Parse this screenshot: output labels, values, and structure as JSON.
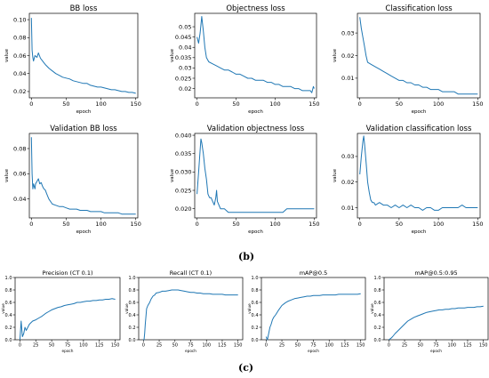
{
  "figure": {
    "panel_labels": [
      "(b)",
      "(c)"
    ],
    "line_color": "#1f77b4"
  },
  "chart_data": [
    {
      "type": "line",
      "title": "BB loss",
      "xlabel": "epoch",
      "ylabel": "value",
      "xlim": [
        -3,
        153
      ],
      "ylim": [
        0.013,
        0.107
      ],
      "xticks": [
        0,
        50,
        100,
        150
      ],
      "yticks": [
        0.02,
        0.04,
        0.06,
        0.08,
        0.1
      ],
      "ytick_labels": [
        "0.02",
        "0.04",
        "0.06",
        "0.08",
        "0.10"
      ],
      "grid": false,
      "series": [
        {
          "x": [
            0,
            1,
            2,
            3,
            5,
            8,
            10,
            13,
            15,
            18,
            20,
            25,
            30,
            35,
            40,
            45,
            50,
            55,
            60,
            65,
            70,
            75,
            80,
            85,
            90,
            95,
            100,
            105,
            110,
            115,
            120,
            125,
            130,
            135,
            140,
            145,
            150
          ],
          "y": [
            0.102,
            0.066,
            0.058,
            0.054,
            0.06,
            0.058,
            0.063,
            0.057,
            0.055,
            0.052,
            0.05,
            0.046,
            0.043,
            0.04,
            0.038,
            0.036,
            0.035,
            0.034,
            0.032,
            0.031,
            0.03,
            0.029,
            0.029,
            0.027,
            0.026,
            0.025,
            0.025,
            0.024,
            0.023,
            0.022,
            0.022,
            0.021,
            0.02,
            0.02,
            0.019,
            0.019,
            0.018
          ]
        }
      ]
    },
    {
      "type": "line",
      "title": "Objectness loss",
      "xlabel": "epoch",
      "ylabel": "value",
      "xlim": [
        -3,
        153
      ],
      "ylim": [
        0.0155,
        0.0565
      ],
      "xticks": [
        0,
        50,
        100,
        150
      ],
      "yticks": [
        0.02,
        0.025,
        0.03,
        0.035,
        0.04,
        0.045,
        0.05
      ],
      "ytick_labels": [
        "0.02",
        "0.025",
        "0.03",
        "0.035",
        "0.04",
        "0.045",
        "0.05"
      ],
      "grid": false,
      "series": [
        {
          "x": [
            0,
            2,
            4,
            6,
            8,
            10,
            12,
            15,
            20,
            25,
            30,
            35,
            40,
            45,
            50,
            55,
            60,
            65,
            70,
            75,
            80,
            85,
            90,
            95,
            100,
            105,
            110,
            115,
            120,
            125,
            130,
            135,
            140,
            145,
            147,
            149,
            150
          ],
          "y": [
            0.045,
            0.042,
            0.047,
            0.055,
            0.048,
            0.04,
            0.035,
            0.033,
            0.032,
            0.031,
            0.03,
            0.029,
            0.029,
            0.028,
            0.027,
            0.027,
            0.026,
            0.025,
            0.025,
            0.024,
            0.024,
            0.024,
            0.023,
            0.023,
            0.022,
            0.022,
            0.021,
            0.021,
            0.021,
            0.02,
            0.02,
            0.019,
            0.019,
            0.019,
            0.018,
            0.021,
            0.02
          ]
        }
      ]
    },
    {
      "type": "line",
      "title": "Classification loss",
      "xlabel": "epoch",
      "ylabel": "value",
      "xlim": [
        -3,
        153
      ],
      "ylim": [
        0.0013,
        0.0387
      ],
      "xticks": [
        0,
        50,
        100,
        150
      ],
      "yticks": [
        0.01,
        0.02,
        0.03
      ],
      "ytick_labels": [
        "0.01",
        "0.02",
        "0.03"
      ],
      "grid": false,
      "series": [
        {
          "x": [
            0,
            2,
            4,
            6,
            8,
            10,
            15,
            20,
            25,
            30,
            35,
            40,
            45,
            50,
            55,
            60,
            65,
            70,
            75,
            80,
            85,
            90,
            95,
            100,
            105,
            110,
            115,
            120,
            125,
            130,
            135,
            140,
            145,
            150
          ],
          "y": [
            0.037,
            0.032,
            0.028,
            0.024,
            0.02,
            0.017,
            0.016,
            0.015,
            0.014,
            0.013,
            0.012,
            0.011,
            0.01,
            0.009,
            0.009,
            0.008,
            0.008,
            0.007,
            0.007,
            0.006,
            0.006,
            0.005,
            0.005,
            0.005,
            0.004,
            0.004,
            0.004,
            0.004,
            0.003,
            0.003,
            0.003,
            0.003,
            0.003,
            0.003
          ]
        }
      ]
    },
    {
      "type": "line",
      "title": "Validation BB loss",
      "xlabel": "epoch",
      "ylabel": "value",
      "xlim": [
        -3,
        153
      ],
      "ylim": [
        0.025,
        0.092
      ],
      "xticks": [
        0,
        50,
        100,
        150
      ],
      "yticks": [
        0.04,
        0.06,
        0.08
      ],
      "ytick_labels": [
        "0.04",
        "0.06",
        "0.08"
      ],
      "grid": false,
      "series": [
        {
          "x": [
            0,
            1,
            2,
            3,
            4,
            5,
            6,
            8,
            10,
            12,
            14,
            16,
            18,
            20,
            22,
            25,
            30,
            35,
            40,
            45,
            50,
            55,
            60,
            65,
            70,
            75,
            80,
            85,
            90,
            95,
            100,
            105,
            110,
            115,
            120,
            125,
            130,
            135,
            140,
            145,
            150
          ],
          "y": [
            0.089,
            0.06,
            0.048,
            0.052,
            0.05,
            0.048,
            0.052,
            0.054,
            0.056,
            0.052,
            0.053,
            0.05,
            0.048,
            0.047,
            0.044,
            0.04,
            0.036,
            0.035,
            0.034,
            0.034,
            0.033,
            0.032,
            0.032,
            0.032,
            0.031,
            0.031,
            0.031,
            0.03,
            0.03,
            0.03,
            0.03,
            0.029,
            0.029,
            0.029,
            0.029,
            0.029,
            0.028,
            0.028,
            0.028,
            0.028,
            0.028
          ]
        }
      ]
    },
    {
      "type": "line",
      "title": "Validation objectness loss",
      "xlabel": "epoch",
      "ylabel": "value",
      "xlim": [
        -3,
        153
      ],
      "ylim": [
        0.0175,
        0.0405
      ],
      "xticks": [
        0,
        50,
        100,
        150
      ],
      "yticks": [
        0.02,
        0.025,
        0.03,
        0.035,
        0.04
      ],
      "ytick_labels": [
        "0.020",
        "0.025",
        "0.030",
        "0.035",
        "0.040"
      ],
      "grid": false,
      "series": [
        {
          "x": [
            0,
            2,
            4,
            5,
            6,
            8,
            10,
            12,
            14,
            16,
            18,
            20,
            22,
            24,
            25,
            26,
            28,
            30,
            35,
            40,
            45,
            50,
            55,
            60,
            65,
            70,
            75,
            80,
            85,
            90,
            95,
            100,
            105,
            110,
            115,
            120,
            125,
            130,
            135,
            140,
            145,
            150
          ],
          "y": [
            0.024,
            0.03,
            0.036,
            0.039,
            0.038,
            0.035,
            0.031,
            0.028,
            0.024,
            0.023,
            0.023,
            0.022,
            0.021,
            0.023,
            0.025,
            0.022,
            0.021,
            0.02,
            0.02,
            0.019,
            0.019,
            0.019,
            0.019,
            0.019,
            0.019,
            0.019,
            0.019,
            0.019,
            0.019,
            0.019,
            0.019,
            0.019,
            0.019,
            0.019,
            0.02,
            0.02,
            0.02,
            0.02,
            0.02,
            0.02,
            0.02,
            0.02
          ]
        }
      ]
    },
    {
      "type": "line",
      "title": "Validation classification loss",
      "xlabel": "epoch",
      "ylabel": "value",
      "xlim": [
        -3,
        153
      ],
      "ylim": [
        0.006,
        0.039
      ],
      "xticks": [
        0,
        50,
        100,
        150
      ],
      "yticks": [
        0.01,
        0.02,
        0.03
      ],
      "ytick_labels": [
        "0.01",
        "0.02",
        "0.03"
      ],
      "grid": false,
      "series": [
        {
          "x": [
            0,
            2,
            4,
            5,
            6,
            8,
            10,
            12,
            14,
            16,
            18,
            20,
            25,
            30,
            35,
            40,
            45,
            50,
            55,
            60,
            65,
            70,
            75,
            80,
            85,
            90,
            95,
            100,
            105,
            110,
            115,
            120,
            125,
            130,
            135,
            140,
            145,
            150
          ],
          "y": [
            0.023,
            0.03,
            0.036,
            0.038,
            0.035,
            0.028,
            0.02,
            0.016,
            0.013,
            0.012,
            0.012,
            0.011,
            0.012,
            0.011,
            0.011,
            0.01,
            0.011,
            0.01,
            0.011,
            0.01,
            0.011,
            0.01,
            0.01,
            0.009,
            0.01,
            0.01,
            0.009,
            0.009,
            0.01,
            0.01,
            0.01,
            0.01,
            0.01,
            0.011,
            0.01,
            0.01,
            0.01,
            0.01
          ]
        }
      ]
    },
    {
      "type": "line",
      "title": "Precision (CT 0.1)",
      "xlabel": "epoch",
      "ylabel": "value",
      "xlim": [
        -7.5,
        157.5
      ],
      "ylim": [
        0,
        1.0
      ],
      "xticks": [
        0,
        25,
        50,
        75,
        100,
        125,
        150
      ],
      "yticks": [
        0,
        0.2,
        0.4,
        0.6,
        0.8,
        1.0
      ],
      "ytick_labels": [
        "0.0",
        "0.2",
        "0.4",
        "0.6",
        "0.8",
        "1.0"
      ],
      "grid": false,
      "series": [
        {
          "x": [
            0,
            2,
            4,
            6,
            8,
            10,
            15,
            20,
            25,
            30,
            35,
            40,
            45,
            50,
            55,
            60,
            65,
            70,
            75,
            80,
            85,
            90,
            95,
            100,
            105,
            110,
            115,
            120,
            125,
            130,
            135,
            140,
            145,
            150
          ],
          "y": [
            0.0,
            0.3,
            0.05,
            0.1,
            0.2,
            0.15,
            0.25,
            0.3,
            0.32,
            0.35,
            0.38,
            0.42,
            0.45,
            0.48,
            0.5,
            0.52,
            0.53,
            0.55,
            0.56,
            0.57,
            0.58,
            0.6,
            0.6,
            0.61,
            0.62,
            0.62,
            0.63,
            0.63,
            0.64,
            0.64,
            0.65,
            0.65,
            0.66,
            0.65
          ]
        }
      ]
    },
    {
      "type": "line",
      "title": "Recall (CT 0.1)",
      "xlabel": "epoch",
      "ylabel": "value",
      "xlim": [
        -7.5,
        157.5
      ],
      "ylim": [
        0,
        1.0
      ],
      "xticks": [
        0,
        25,
        50,
        75,
        100,
        125,
        150
      ],
      "yticks": [
        0,
        0.2,
        0.4,
        0.6,
        0.8,
        1.0
      ],
      "ytick_labels": [
        "0.0",
        "0.2",
        "0.4",
        "0.6",
        "0.8",
        "1.0"
      ],
      "grid": false,
      "series": [
        {
          "x": [
            0,
            1,
            2,
            3,
            5,
            7,
            10,
            12,
            15,
            18,
            20,
            25,
            30,
            35,
            40,
            45,
            50,
            55,
            60,
            65,
            70,
            75,
            80,
            85,
            90,
            95,
            100,
            105,
            110,
            115,
            120,
            125,
            130,
            135,
            140,
            145,
            150
          ],
          "y": [
            0.0,
            0.0,
            0.1,
            0.25,
            0.5,
            0.55,
            0.6,
            0.65,
            0.7,
            0.72,
            0.75,
            0.76,
            0.78,
            0.78,
            0.79,
            0.8,
            0.8,
            0.8,
            0.79,
            0.78,
            0.77,
            0.76,
            0.76,
            0.75,
            0.75,
            0.74,
            0.74,
            0.74,
            0.73,
            0.73,
            0.73,
            0.73,
            0.72,
            0.72,
            0.72,
            0.72,
            0.72
          ]
        }
      ]
    },
    {
      "type": "line",
      "title": "mAP@0.5",
      "xlabel": "epoch",
      "ylabel": "value",
      "xlim": [
        -7.5,
        157.5
      ],
      "ylim": [
        0,
        1.0
      ],
      "xticks": [
        0,
        25,
        50,
        75,
        100,
        125,
        150
      ],
      "yticks": [
        0,
        0.2,
        0.4,
        0.6,
        0.8,
        1.0
      ],
      "ytick_labels": [
        "0.0",
        "0.2",
        "0.4",
        "0.6",
        "0.8",
        "1.0"
      ],
      "grid": false,
      "series": [
        {
          "x": [
            0,
            2,
            4,
            6,
            8,
            10,
            12,
            15,
            20,
            25,
            30,
            35,
            40,
            45,
            50,
            55,
            60,
            65,
            70,
            75,
            80,
            85,
            90,
            95,
            100,
            105,
            110,
            115,
            120,
            125,
            130,
            135,
            140,
            145,
            150
          ],
          "y": [
            0.05,
            0.0,
            0.1,
            0.2,
            0.25,
            0.32,
            0.36,
            0.4,
            0.48,
            0.55,
            0.59,
            0.62,
            0.64,
            0.66,
            0.67,
            0.68,
            0.69,
            0.7,
            0.7,
            0.71,
            0.71,
            0.71,
            0.72,
            0.72,
            0.72,
            0.72,
            0.72,
            0.73,
            0.73,
            0.73,
            0.73,
            0.73,
            0.73,
            0.73,
            0.74
          ]
        }
      ]
    },
    {
      "type": "line",
      "title": "mAP@0.5:0.95",
      "xlabel": "epoch",
      "ylabel": "value",
      "xlim": [
        -7.5,
        157.5
      ],
      "ylim": [
        0,
        1.0
      ],
      "xticks": [
        0,
        25,
        50,
        75,
        100,
        125,
        150
      ],
      "yticks": [
        0,
        0.2,
        0.4,
        0.6,
        0.8,
        1.0
      ],
      "ytick_labels": [
        "0.0",
        "0.2",
        "0.4",
        "0.6",
        "0.8",
        "1.0"
      ],
      "grid": false,
      "series": [
        {
          "x": [
            0,
            3,
            6,
            10,
            15,
            20,
            25,
            30,
            35,
            40,
            45,
            50,
            55,
            60,
            65,
            70,
            75,
            80,
            85,
            90,
            95,
            100,
            105,
            110,
            115,
            120,
            125,
            130,
            135,
            140,
            145,
            150
          ],
          "y": [
            0.0,
            0.02,
            0.05,
            0.1,
            0.15,
            0.2,
            0.25,
            0.3,
            0.33,
            0.36,
            0.38,
            0.4,
            0.42,
            0.44,
            0.45,
            0.46,
            0.47,
            0.48,
            0.48,
            0.49,
            0.49,
            0.5,
            0.5,
            0.51,
            0.51,
            0.51,
            0.52,
            0.52,
            0.52,
            0.53,
            0.53,
            0.54
          ]
        }
      ]
    }
  ]
}
